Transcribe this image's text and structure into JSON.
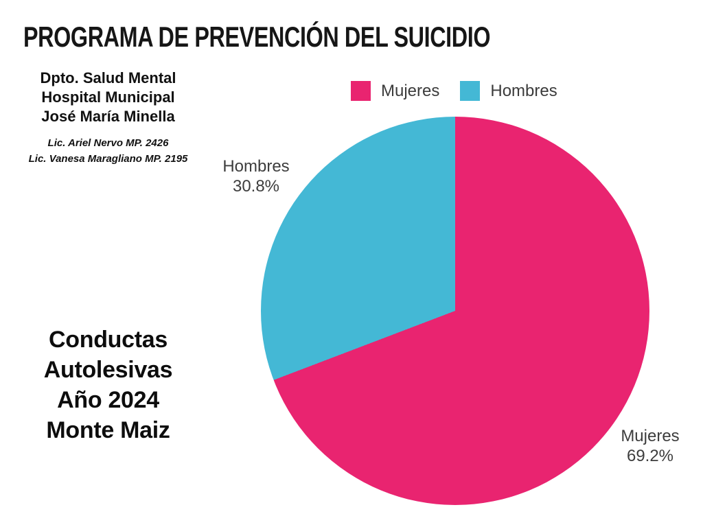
{
  "title": "PROGRAMA DE PREVENCIÓN DEL SUICIDIO",
  "department": {
    "lines": [
      "Dpto. Salud Mental",
      "Hospital Municipal",
      "José María Minella"
    ],
    "credits": [
      "Lic. Ariel Nervo MP. 2426",
      "Lic. Vanesa Maragliano MP. 2195"
    ]
  },
  "caption": {
    "lines": [
      "Conductas",
      "Autolesivas",
      "Año 2024",
      "Monte Maiz"
    ]
  },
  "legend": {
    "items": [
      {
        "label": "Mujeres",
        "color": "#E92470"
      },
      {
        "label": "Hombres",
        "color": "#44B8D5"
      }
    ]
  },
  "pie_labels": {
    "mujeres": {
      "name": "Mujeres",
      "pct": "69.2%"
    },
    "hombres": {
      "name": "Hombres",
      "pct": "30.8%"
    }
  },
  "chart_data": {
    "type": "pie",
    "title": "PROGRAMA DE PREVENCIÓN DEL SUICIDIO",
    "series": [
      {
        "name": "Mujeres",
        "value": 69.2,
        "color": "#E92470"
      },
      {
        "name": "Hombres",
        "value": 30.8,
        "color": "#44B8D5"
      }
    ],
    "start_angle_deg": 0,
    "direction": "clockwise",
    "legend_position": "top",
    "label_format": "name + percent"
  }
}
